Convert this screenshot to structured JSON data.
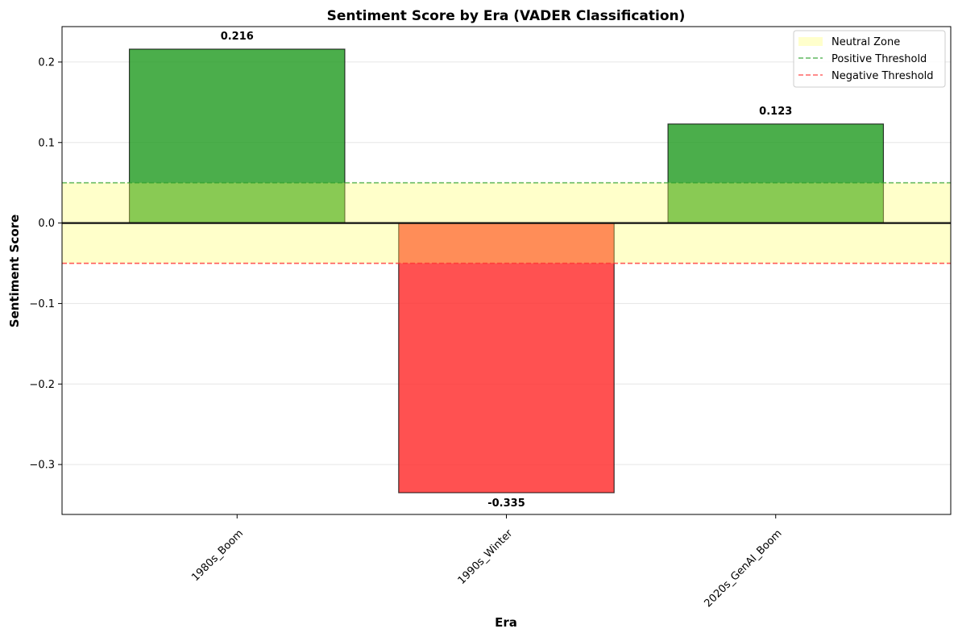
{
  "chart_data": {
    "type": "bar",
    "title": "Sentiment Score by Era (VADER Classification)",
    "xlabel": "Era",
    "ylabel": "Sentiment Score",
    "categories": [
      "1980s_Boom",
      "1990s_Winter",
      "2020s_GenAI_Boom"
    ],
    "values": [
      0.216,
      -0.335,
      0.123
    ],
    "value_labels": [
      "0.216",
      "-0.335",
      "0.123"
    ],
    "bar_colors": [
      "#2ca02c",
      "#ff3333",
      "#2ca02c"
    ],
    "ylim": [
      -0.362,
      0.244
    ],
    "yticks": [
      -0.3,
      -0.2,
      -0.1,
      0.0,
      0.1,
      0.2
    ],
    "ytick_labels": [
      "−0.3",
      "−0.2",
      "−0.1",
      "0.0",
      "0.1",
      "0.2"
    ],
    "grid": "y",
    "neutral_zone": [
      -0.05,
      0.05
    ],
    "positive_threshold": 0.05,
    "negative_threshold": -0.05,
    "legend_position": "top-right",
    "legend": [
      {
        "label": "Neutral Zone",
        "kind": "patch",
        "color": "#ffff99"
      },
      {
        "label": "Positive Threshold",
        "kind": "dashed-line",
        "color": "#2ca02c"
      },
      {
        "label": "Negative Threshold",
        "kind": "dashed-line",
        "color": "#ff3333"
      }
    ]
  }
}
